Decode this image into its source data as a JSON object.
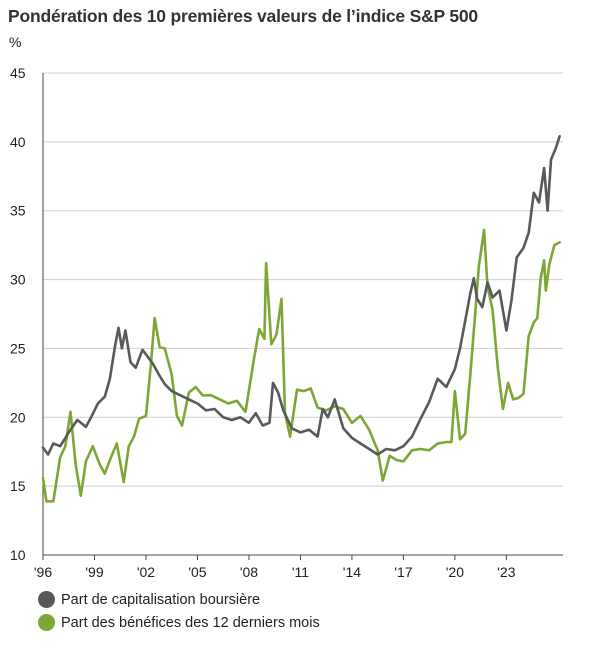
{
  "chart_data": {
    "type": "line",
    "title": "Pondération des 10 premières valeurs de l’indice S&P 500",
    "ylabel": "%",
    "xlabel": "",
    "ylim": [
      10,
      45
    ],
    "xlim": [
      1996,
      2026.3
    ],
    "yticks": [
      10,
      15,
      20,
      25,
      30,
      35,
      40,
      45
    ],
    "xticks": [
      {
        "value": 1996,
        "label": "'96"
      },
      {
        "value": 1999,
        "label": "'99"
      },
      {
        "value": 2002,
        "label": "'02"
      },
      {
        "value": 2005,
        "label": "'05"
      },
      {
        "value": 2008,
        "label": "'08"
      },
      {
        "value": 2011,
        "label": "'11"
      },
      {
        "value": 2014,
        "label": "'14"
      },
      {
        "value": 2017,
        "label": "'17"
      },
      {
        "value": 2020,
        "label": "'20"
      },
      {
        "value": 2023,
        "label": "'23"
      }
    ],
    "grid": "horizontal",
    "legend_placement": "bottom-left",
    "series": [
      {
        "name": "Part de capitalisation boursière",
        "color": "#58595b",
        "points": [
          [
            1996.0,
            17.8
          ],
          [
            1996.3,
            17.3
          ],
          [
            1996.6,
            18.1
          ],
          [
            1997.0,
            17.9
          ],
          [
            1997.5,
            18.9
          ],
          [
            1998.0,
            19.8
          ],
          [
            1998.5,
            19.3
          ],
          [
            1998.8,
            20.0
          ],
          [
            1999.2,
            21.0
          ],
          [
            1999.6,
            21.5
          ],
          [
            1999.9,
            22.8
          ],
          [
            2000.2,
            25.2
          ],
          [
            2000.4,
            26.5
          ],
          [
            2000.6,
            25.0
          ],
          [
            2000.8,
            26.3
          ],
          [
            2001.1,
            24.0
          ],
          [
            2001.4,
            23.6
          ],
          [
            2001.8,
            24.9
          ],
          [
            2002.1,
            24.4
          ],
          [
            2002.4,
            23.9
          ],
          [
            2002.8,
            23.0
          ],
          [
            2003.1,
            22.4
          ],
          [
            2003.5,
            21.9
          ],
          [
            2004.0,
            21.6
          ],
          [
            2004.5,
            21.3
          ],
          [
            2005.0,
            21.0
          ],
          [
            2005.5,
            20.5
          ],
          [
            2006.0,
            20.6
          ],
          [
            2006.5,
            20.0
          ],
          [
            2007.0,
            19.8
          ],
          [
            2007.5,
            20.0
          ],
          [
            2008.0,
            19.6
          ],
          [
            2008.4,
            20.3
          ],
          [
            2008.8,
            19.4
          ],
          [
            2009.2,
            19.6
          ],
          [
            2009.4,
            22.5
          ],
          [
            2009.7,
            21.8
          ],
          [
            2010.0,
            20.5
          ],
          [
            2010.5,
            19.2
          ],
          [
            2011.0,
            18.9
          ],
          [
            2011.5,
            19.1
          ],
          [
            2012.0,
            18.6
          ],
          [
            2012.3,
            20.6
          ],
          [
            2012.6,
            20.0
          ],
          [
            2013.0,
            21.3
          ],
          [
            2013.5,
            19.2
          ],
          [
            2014.0,
            18.5
          ],
          [
            2014.5,
            18.1
          ],
          [
            2015.0,
            17.7
          ],
          [
            2015.5,
            17.3
          ],
          [
            2016.0,
            17.7
          ],
          [
            2016.5,
            17.6
          ],
          [
            2017.0,
            17.9
          ],
          [
            2017.5,
            18.6
          ],
          [
            2018.0,
            19.9
          ],
          [
            2018.5,
            21.1
          ],
          [
            2019.0,
            22.8
          ],
          [
            2019.5,
            22.2
          ],
          [
            2020.0,
            23.5
          ],
          [
            2020.3,
            25.0
          ],
          [
            2020.6,
            27.0
          ],
          [
            2020.9,
            29.0
          ],
          [
            2021.1,
            30.1
          ],
          [
            2021.3,
            28.6
          ],
          [
            2021.6,
            28.0
          ],
          [
            2021.9,
            29.8
          ],
          [
            2022.2,
            28.7
          ],
          [
            2022.6,
            29.2
          ],
          [
            2023.0,
            26.3
          ],
          [
            2023.3,
            28.5
          ],
          [
            2023.6,
            31.6
          ],
          [
            2024.0,
            32.3
          ],
          [
            2024.3,
            33.4
          ],
          [
            2024.6,
            36.3
          ],
          [
            2024.9,
            35.6
          ],
          [
            2025.2,
            38.1
          ],
          [
            2025.4,
            35.0
          ],
          [
            2025.6,
            38.7
          ],
          [
            2025.9,
            39.6
          ],
          [
            2026.1,
            40.4
          ]
        ]
      },
      {
        "name": "Part des bénéfices des 12 derniers mois",
        "color": "#7ea636",
        "points": [
          [
            1996.0,
            15.6
          ],
          [
            1996.2,
            13.9
          ],
          [
            1996.6,
            13.9
          ],
          [
            1997.0,
            17.1
          ],
          [
            1997.3,
            17.9
          ],
          [
            1997.6,
            20.4
          ],
          [
            1997.9,
            16.6
          ],
          [
            1998.2,
            14.3
          ],
          [
            1998.5,
            16.8
          ],
          [
            1998.9,
            17.9
          ],
          [
            1999.3,
            16.6
          ],
          [
            1999.6,
            15.9
          ],
          [
            1999.9,
            16.9
          ],
          [
            2000.3,
            18.1
          ],
          [
            2000.7,
            15.3
          ],
          [
            2001.0,
            17.9
          ],
          [
            2001.3,
            18.6
          ],
          [
            2001.6,
            19.9
          ],
          [
            2002.0,
            20.1
          ],
          [
            2002.3,
            24.0
          ],
          [
            2002.5,
            27.2
          ],
          [
            2002.8,
            25.1
          ],
          [
            2003.1,
            25.0
          ],
          [
            2003.5,
            23.1
          ],
          [
            2003.8,
            20.1
          ],
          [
            2004.1,
            19.4
          ],
          [
            2004.5,
            21.8
          ],
          [
            2004.9,
            22.2
          ],
          [
            2005.3,
            21.6
          ],
          [
            2005.8,
            21.6
          ],
          [
            2006.3,
            21.3
          ],
          [
            2006.8,
            21.0
          ],
          [
            2007.3,
            21.2
          ],
          [
            2007.8,
            20.4
          ],
          [
            2008.3,
            24.3
          ],
          [
            2008.6,
            26.4
          ],
          [
            2008.9,
            25.7
          ],
          [
            2009.0,
            31.2
          ],
          [
            2009.3,
            25.3
          ],
          [
            2009.6,
            26.0
          ],
          [
            2009.9,
            28.6
          ],
          [
            2010.1,
            20.3
          ],
          [
            2010.4,
            18.6
          ],
          [
            2010.8,
            22.0
          ],
          [
            2011.2,
            21.9
          ],
          [
            2011.6,
            22.1
          ],
          [
            2012.0,
            20.7
          ],
          [
            2012.5,
            20.5
          ],
          [
            2013.0,
            20.8
          ],
          [
            2013.5,
            20.6
          ],
          [
            2014.0,
            19.6
          ],
          [
            2014.5,
            20.1
          ],
          [
            2015.0,
            19.1
          ],
          [
            2015.5,
            17.6
          ],
          [
            2015.8,
            15.4
          ],
          [
            2016.2,
            17.2
          ],
          [
            2016.6,
            16.9
          ],
          [
            2017.0,
            16.8
          ],
          [
            2017.5,
            17.6
          ],
          [
            2018.0,
            17.7
          ],
          [
            2018.5,
            17.6
          ],
          [
            2019.0,
            18.1
          ],
          [
            2019.5,
            18.2
          ],
          [
            2019.8,
            18.2
          ],
          [
            2020.0,
            21.9
          ],
          [
            2020.3,
            18.4
          ],
          [
            2020.6,
            18.8
          ],
          [
            2020.9,
            23.1
          ],
          [
            2021.2,
            27.8
          ],
          [
            2021.4,
            31.0
          ],
          [
            2021.7,
            33.6
          ],
          [
            2021.9,
            29.5
          ],
          [
            2022.2,
            27.8
          ],
          [
            2022.5,
            23.6
          ],
          [
            2022.8,
            20.6
          ],
          [
            2023.1,
            22.5
          ],
          [
            2023.4,
            21.3
          ],
          [
            2023.7,
            21.4
          ],
          [
            2024.0,
            21.7
          ],
          [
            2024.3,
            25.9
          ],
          [
            2024.6,
            26.9
          ],
          [
            2024.8,
            27.2
          ],
          [
            2025.0,
            30.1
          ],
          [
            2025.2,
            31.4
          ],
          [
            2025.3,
            29.2
          ],
          [
            2025.5,
            31.1
          ],
          [
            2025.8,
            32.5
          ],
          [
            2026.1,
            32.7
          ]
        ]
      }
    ]
  }
}
